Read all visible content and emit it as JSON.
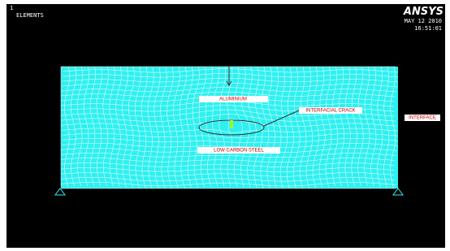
{
  "window": {
    "number": "1",
    "mode": "ELEMENTS"
  },
  "branding": {
    "logo": "ANSYS",
    "date": "MAY 12 2010",
    "time": "16:51:01"
  },
  "labels": {
    "top_material": "ALUMINIUM",
    "crack": "INTERFACIAL CRACK",
    "interface": "INTERFACE",
    "bottom_material": "LOW CARBON STEEL"
  }
}
